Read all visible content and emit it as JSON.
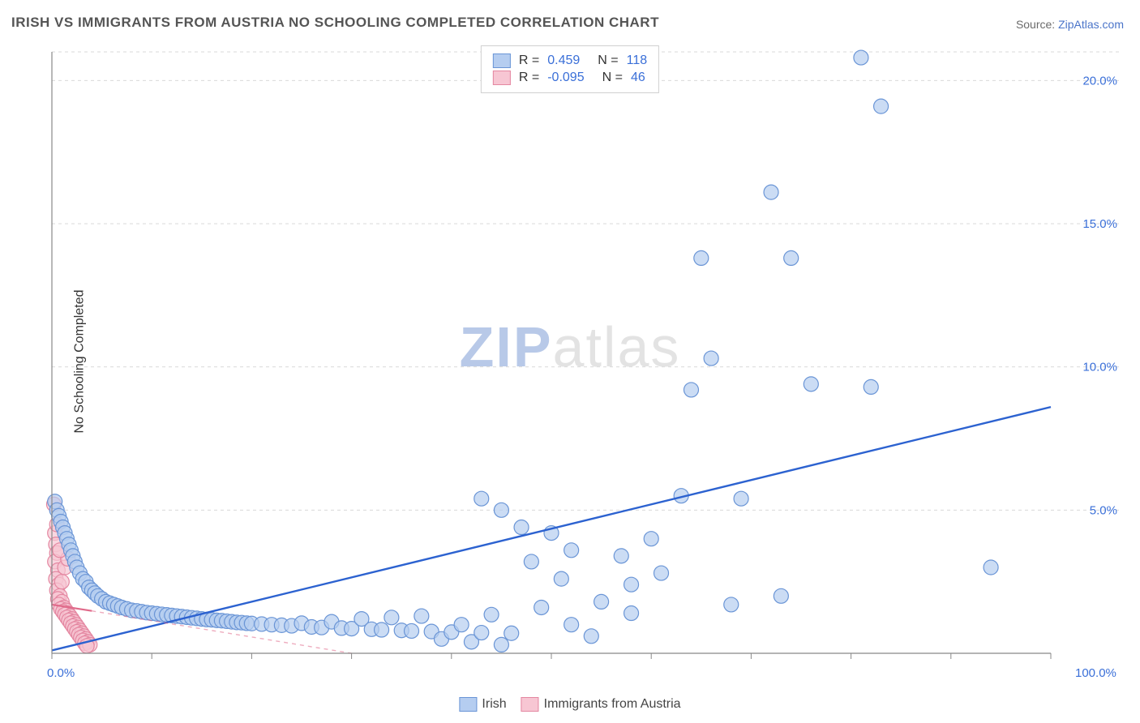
{
  "title": "IRISH VS IMMIGRANTS FROM AUSTRIA NO SCHOOLING COMPLETED CORRELATION CHART",
  "source_label": "Source:",
  "source_value": "ZipAtlas.com",
  "y_axis_label": "No Schooling Completed",
  "watermark_a": "ZIP",
  "watermark_b": "atlas",
  "chart": {
    "type": "scatter",
    "xlim": [
      0,
      100
    ],
    "ylim": [
      0,
      21
    ],
    "x_tick_min_label": "0.0%",
    "x_tick_max_label": "100.0%",
    "x_ticks": [
      0,
      10,
      20,
      30,
      40,
      50,
      60,
      70,
      80,
      90,
      100
    ],
    "y_ticks": [
      5,
      10,
      15,
      20
    ],
    "y_tick_labels": [
      "5.0%",
      "10.0%",
      "15.0%",
      "20.0%"
    ],
    "background_color": "#ffffff",
    "grid_color": "#d9d9d9",
    "axis_color": "#888888",
    "axis_label_color_x": "#3a6fd8",
    "axis_label_color_y": "#3a6fd8",
    "marker_radius": 9,
    "marker_stroke_width": 1.2,
    "series": [
      {
        "name": "Irish",
        "fill": "#b5cdf0",
        "stroke": "#6a95d6",
        "trend_color": "#2c62d0",
        "trend_from": [
          0,
          0.1
        ],
        "trend_to": [
          100,
          8.6
        ],
        "R": "0.459",
        "N": "118",
        "points": [
          [
            0.3,
            5.3
          ],
          [
            0.5,
            5.0
          ],
          [
            0.7,
            4.8
          ],
          [
            0.9,
            4.6
          ],
          [
            1.1,
            4.4
          ],
          [
            1.3,
            4.2
          ],
          [
            1.5,
            4.0
          ],
          [
            1.7,
            3.8
          ],
          [
            1.9,
            3.6
          ],
          [
            2.1,
            3.4
          ],
          [
            2.3,
            3.2
          ],
          [
            2.5,
            3.0
          ],
          [
            2.8,
            2.8
          ],
          [
            3.1,
            2.6
          ],
          [
            3.4,
            2.5
          ],
          [
            3.7,
            2.3
          ],
          [
            4.0,
            2.2
          ],
          [
            4.3,
            2.1
          ],
          [
            4.6,
            2.0
          ],
          [
            5.0,
            1.9
          ],
          [
            5.4,
            1.8
          ],
          [
            5.8,
            1.75
          ],
          [
            6.2,
            1.7
          ],
          [
            6.6,
            1.65
          ],
          [
            7.0,
            1.6
          ],
          [
            7.5,
            1.55
          ],
          [
            8.0,
            1.5
          ],
          [
            8.5,
            1.48
          ],
          [
            9.0,
            1.45
          ],
          [
            9.5,
            1.42
          ],
          [
            10,
            1.4
          ],
          [
            10.5,
            1.38
          ],
          [
            11,
            1.36
          ],
          [
            11.5,
            1.34
          ],
          [
            12,
            1.32
          ],
          [
            12.5,
            1.3
          ],
          [
            13,
            1.28
          ],
          [
            13.5,
            1.26
          ],
          [
            14,
            1.24
          ],
          [
            14.5,
            1.22
          ],
          [
            15,
            1.2
          ],
          [
            15.5,
            1.18
          ],
          [
            16,
            1.17
          ],
          [
            16.5,
            1.15
          ],
          [
            17,
            1.14
          ],
          [
            17.5,
            1.12
          ],
          [
            18,
            1.1
          ],
          [
            18.5,
            1.08
          ],
          [
            19,
            1.07
          ],
          [
            19.5,
            1.05
          ],
          [
            20,
            1.04
          ],
          [
            21,
            1.02
          ],
          [
            22,
            1.0
          ],
          [
            23,
            0.98
          ],
          [
            24,
            0.96
          ],
          [
            25,
            1.05
          ],
          [
            26,
            0.92
          ],
          [
            27,
            0.9
          ],
          [
            28,
            1.1
          ],
          [
            29,
            0.88
          ],
          [
            30,
            0.86
          ],
          [
            31,
            1.2
          ],
          [
            32,
            0.84
          ],
          [
            33,
            0.82
          ],
          [
            34,
            1.25
          ],
          [
            35,
            0.8
          ],
          [
            36,
            0.78
          ],
          [
            37,
            1.3
          ],
          [
            38,
            0.76
          ],
          [
            39,
            0.5
          ],
          [
            40,
            0.74
          ],
          [
            41,
            1.0
          ],
          [
            42,
            0.4
          ],
          [
            43,
            0.72
          ],
          [
            44,
            1.35
          ],
          [
            45,
            0.3
          ],
          [
            46,
            0.7
          ],
          [
            43,
            5.4
          ],
          [
            45,
            5.0
          ],
          [
            47,
            4.4
          ],
          [
            48,
            3.2
          ],
          [
            49,
            1.6
          ],
          [
            50,
            4.2
          ],
          [
            51,
            2.6
          ],
          [
            52,
            3.6
          ],
          [
            52,
            1.0
          ],
          [
            54,
            0.6
          ],
          [
            55,
            1.8
          ],
          [
            57,
            3.4
          ],
          [
            58,
            1.4
          ],
          [
            58,
            2.4
          ],
          [
            60,
            4.0
          ],
          [
            61,
            2.8
          ],
          [
            63,
            5.5
          ],
          [
            64,
            9.2
          ],
          [
            65,
            13.8
          ],
          [
            66,
            10.3
          ],
          [
            68,
            1.7
          ],
          [
            69,
            5.4
          ],
          [
            72,
            16.1
          ],
          [
            73,
            2.0
          ],
          [
            74,
            13.8
          ],
          [
            76,
            9.4
          ],
          [
            81,
            20.8
          ],
          [
            82,
            9.3
          ],
          [
            83,
            19.1
          ],
          [
            94,
            3.0
          ]
        ]
      },
      {
        "name": "Immigrants from Austria",
        "fill": "#f7c6d3",
        "stroke": "#e487a1",
        "trend_color": "#e06a8a",
        "trend_from": [
          0,
          1.7
        ],
        "trend_to": [
          30,
          0.0
        ],
        "trend_dashed_from": [
          4,
          1.48
        ],
        "R": "-0.095",
        "N": "46",
        "points": [
          [
            0.2,
            5.2
          ],
          [
            0.3,
            4.2
          ],
          [
            0.4,
            3.8
          ],
          [
            0.5,
            3.5
          ],
          [
            0.3,
            3.2
          ],
          [
            0.6,
            2.9
          ],
          [
            0.4,
            2.6
          ],
          [
            0.7,
            2.4
          ],
          [
            0.5,
            2.2
          ],
          [
            0.8,
            2.0
          ],
          [
            0.6,
            1.9
          ],
          [
            1.0,
            1.8
          ],
          [
            0.7,
            1.7
          ],
          [
            1.2,
            1.6
          ],
          [
            0.9,
            1.55
          ],
          [
            1.4,
            1.5
          ],
          [
            1.1,
            1.45
          ],
          [
            1.6,
            1.4
          ],
          [
            1.3,
            1.35
          ],
          [
            1.8,
            1.3
          ],
          [
            1.5,
            1.25
          ],
          [
            2.0,
            1.2
          ],
          [
            1.7,
            1.15
          ],
          [
            2.2,
            1.1
          ],
          [
            1.9,
            1.05
          ],
          [
            2.4,
            1.0
          ],
          [
            2.1,
            0.95
          ],
          [
            2.6,
            0.9
          ],
          [
            2.3,
            0.85
          ],
          [
            2.8,
            0.8
          ],
          [
            2.5,
            0.75
          ],
          [
            3.0,
            0.7
          ],
          [
            2.7,
            0.65
          ],
          [
            3.2,
            0.6
          ],
          [
            2.9,
            0.55
          ],
          [
            3.4,
            0.5
          ],
          [
            3.1,
            0.45
          ],
          [
            3.6,
            0.4
          ],
          [
            3.3,
            0.35
          ],
          [
            3.8,
            0.3
          ],
          [
            3.5,
            0.26
          ],
          [
            1.0,
            2.5
          ],
          [
            1.3,
            3.0
          ],
          [
            1.6,
            3.3
          ],
          [
            0.8,
            3.6
          ],
          [
            0.5,
            4.5
          ]
        ]
      }
    ]
  },
  "legend_top": {
    "r_label": "R =",
    "n_label": "N ="
  },
  "legend_bottom": {
    "items": [
      "Irish",
      "Immigrants from Austria"
    ]
  }
}
